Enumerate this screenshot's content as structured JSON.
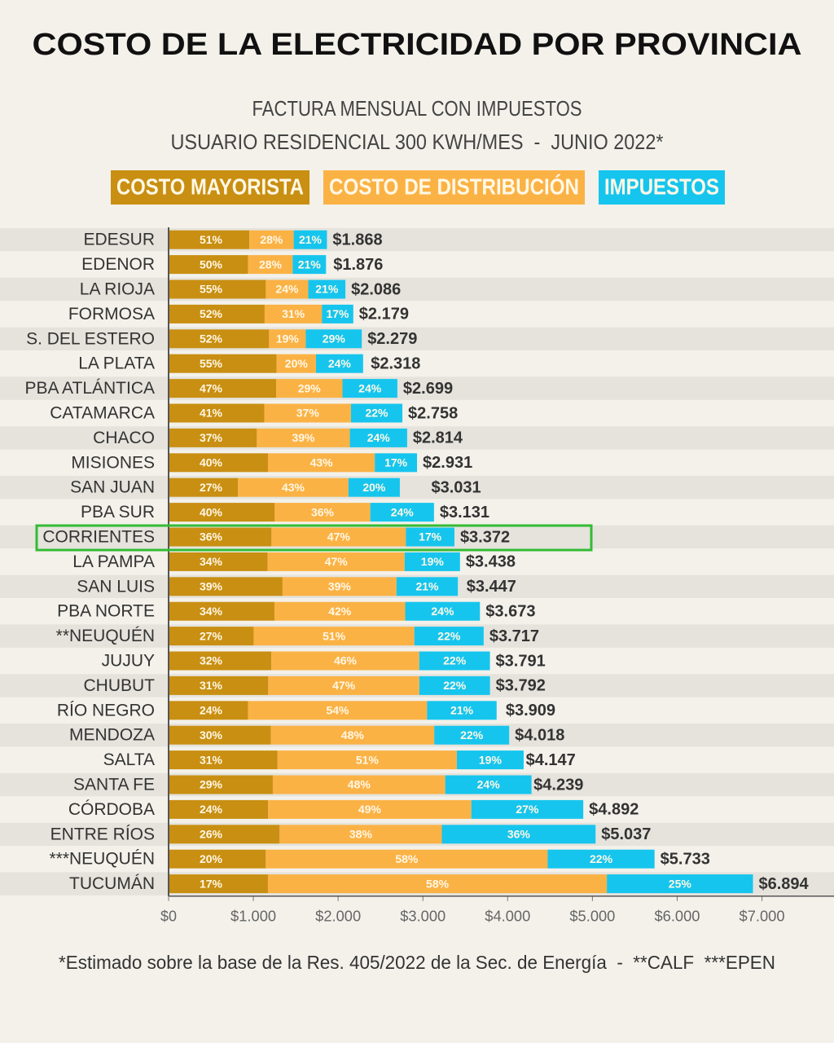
{
  "chart_data": {
    "type": "stacked-bar-horizontal",
    "title": "COSTO DE LA ELECTRICIDAD POR PROVINCIA",
    "subtitle": [
      "FACTURA MENSUAL CON IMPUESTOS",
      "USUARIO RESIDENCIAL 300 KWH/MES  -  JUNIO 2022*"
    ],
    "footnote": "*Estimado sobre la base de la Res. 405/2022 de la Sec. de Energía  -  **CALF  ***EPEN",
    "categories": [
      "EDESUR",
      "EDENOR",
      "LA RIOJA",
      "FORMOSA",
      "S. DEL ESTERO",
      "LA PLATA",
      "PBA ATLÁNTICA",
      "CATAMARCA",
      "CHACO",
      "MISIONES",
      "SAN JUAN",
      "PBA SUR",
      "CORRIENTES",
      "LA PAMPA",
      "SAN LUIS",
      "PBA NORTE",
      "**NEUQUÉN",
      "JUJUY",
      "CHUBUT",
      "RÍO NEGRO",
      "MENDOZA",
      "SALTA",
      "SANTA FE",
      "CÓRDOBA",
      "ENTRE RÍOS",
      "***NEUQUÉN",
      "TUCUMÁN"
    ],
    "totals": {
      "values": [
        1868,
        1876,
        2086,
        2179,
        2279,
        2318,
        2699,
        2758,
        2814,
        2931,
        3031,
        3131,
        3372,
        3438,
        3447,
        3673,
        3717,
        3791,
        3792,
        3909,
        4018,
        4147,
        4239,
        4892,
        5037,
        5733,
        6894
      ],
      "value_labels": [
        "$1.868",
        "$1.876",
        "$2.086",
        "$2.179",
        "$2.279",
        "$2.318",
        "$2.699",
        "$2.758",
        "$2.814",
        "$2.931",
        "$3.031",
        "$3.131",
        "$3.372",
        "$3.438",
        "$3.447",
        "$3.673",
        "$3.717",
        "$3.791",
        "$3.792",
        "$3.909",
        "$4.018",
        "$4.147",
        "$4.239",
        "$4.892",
        "$5.037",
        "$5.733",
        "$6.894"
      ]
    },
    "series": [
      {
        "name": "COSTO MAYORISTA",
        "color": "#c98f12",
        "values": [
          51,
          50,
          55,
          52,
          52,
          55,
          47,
          41,
          37,
          40,
          27,
          40,
          36,
          34,
          39,
          34,
          27,
          32,
          31,
          24,
          30,
          31,
          29,
          24,
          26,
          20,
          17
        ],
        "value_labels": [
          "51%",
          "50%",
          "55%",
          "52%",
          "52%",
          "55%",
          "47%",
          "41%",
          "37%",
          "40%",
          "27%",
          "40%",
          "36%",
          "34%",
          "39%",
          "34%",
          "27%",
          "32%",
          "31%",
          "24%",
          "30%",
          "31%",
          "29%",
          "24%",
          "26%",
          "20%",
          "17%"
        ]
      },
      {
        "name": "COSTO DE DISTRIBUCIÓN",
        "color": "#fbb245",
        "values": [
          28,
          28,
          24,
          31,
          19,
          20,
          29,
          37,
          39,
          43,
          43,
          36,
          47,
          47,
          39,
          42,
          51,
          46,
          47,
          54,
          48,
          51,
          48,
          49,
          38,
          58,
          58
        ],
        "value_labels": [
          "28%",
          "28%",
          "24%",
          "31%",
          "19%",
          "20%",
          "29%",
          "37%",
          "39%",
          "43%",
          "43%",
          "36%",
          "47%",
          "47%",
          "39%",
          "42%",
          "51%",
          "46%",
          "47%",
          "54%",
          "48%",
          "51%",
          "48%",
          "49%",
          "38%",
          "58%",
          "58%"
        ]
      },
      {
        "name": "IMPUESTOS",
        "color": "#16c5ee",
        "values": [
          21,
          21,
          21,
          17,
          29,
          24,
          24,
          22,
          24,
          17,
          20,
          24,
          17,
          19,
          21,
          24,
          22,
          22,
          22,
          21,
          22,
          19,
          24,
          27,
          36,
          22,
          25
        ],
        "value_labels": [
          "21%",
          "21%",
          "21%",
          "17%",
          "29%",
          "24%",
          "24%",
          "22%",
          "24%",
          "17%",
          "20%",
          "24%",
          "17%",
          "19%",
          "21%",
          "24%",
          "22%",
          "22%",
          "22%",
          "21%",
          "22%",
          "19%",
          "24%",
          "27%",
          "36%",
          "22%",
          "25%"
        ]
      }
    ],
    "xlim": [
      0,
      7850
    ],
    "xticks": [
      {
        "value": 0,
        "label": "$0"
      },
      {
        "value": 1000,
        "label": "$1.000"
      },
      {
        "value": 2000,
        "label": "$2.000"
      },
      {
        "value": 3000,
        "label": "$3.000"
      },
      {
        "value": 4000,
        "label": "$4.000"
      },
      {
        "value": 5000,
        "label": "$5.000"
      },
      {
        "value": 6000,
        "label": "$6.000"
      },
      {
        "value": 7000,
        "label": "$7.000"
      }
    ]
  }
}
